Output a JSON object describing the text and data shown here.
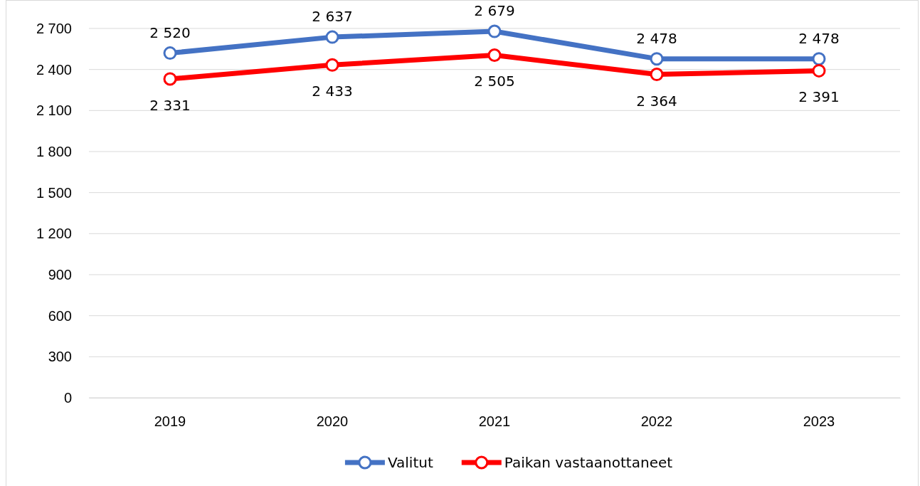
{
  "chart_data": {
    "type": "line",
    "categories": [
      "2019",
      "2020",
      "2021",
      "2022",
      "2023"
    ],
    "series": [
      {
        "name": "Valitut",
        "color": "#4472c4",
        "values": [
          2520,
          2637,
          2679,
          2478,
          2478
        ],
        "value_labels": [
          "2 520",
          "2 637",
          "2 679",
          "2 478",
          "2 478"
        ]
      },
      {
        "name": "Paikan vastaanottaneet",
        "color": "#ff0000",
        "values": [
          2331,
          2433,
          2505,
          2364,
          2391
        ],
        "value_labels": [
          "2 331",
          "2 433",
          "2 505",
          "2 364",
          "2 391"
        ]
      }
    ],
    "ylim": [
      0,
      2700
    ],
    "yticks": [
      0,
      300,
      600,
      900,
      {
        "value": 1200,
        "label": "1 200"
      },
      {
        "value": 1500,
        "label": "1 500"
      },
      {
        "value": 1800,
        "label": "1 800"
      },
      {
        "value": 2100,
        "label": "2 100"
      },
      {
        "value": 2400,
        "label": "2 400"
      },
      {
        "value": 2700,
        "label": "2 700"
      }
    ],
    "grid": "y",
    "legend": "bottom",
    "marker": "circle",
    "line_style": "solid"
  }
}
